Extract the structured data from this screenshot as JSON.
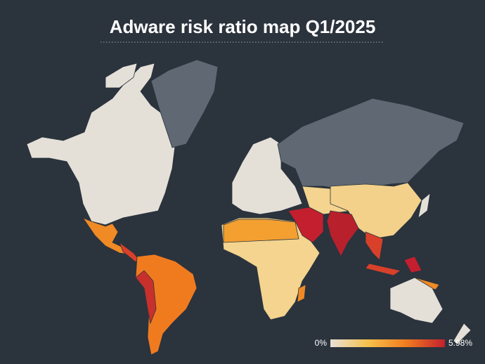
{
  "title": "Adware risk ratio map Q1/2025",
  "legend": {
    "min": {
      "value": 0,
      "label": "0%"
    },
    "max": {
      "value": 5.98,
      "label": "5.98%"
    },
    "colors": [
      "#e6e1d8",
      "#f6c04a",
      "#f07b1f",
      "#c41f2e"
    ]
  }
}
